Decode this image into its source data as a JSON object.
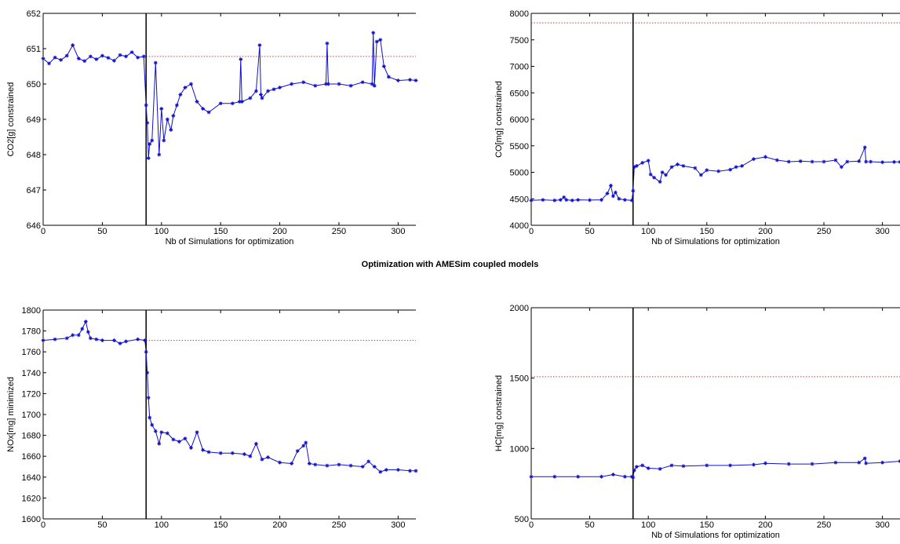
{
  "figure": {
    "suptitle": "Optimization with AMESim coupled models",
    "colors": {
      "series": "#1010cc",
      "limit": "#dd3333",
      "vline": "#000000",
      "axes": "#000000"
    }
  },
  "chart_data": [
    {
      "type": "line",
      "xlabel": "Nb of Simulations for optimization",
      "ylabel": "CO2[g] constrained",
      "xlim": [
        0,
        315
      ],
      "ylim": [
        646,
        652
      ],
      "xticks": [
        0,
        50,
        100,
        150,
        200,
        250,
        300
      ],
      "yticks": [
        646,
        647,
        648,
        649,
        650,
        651,
        652
      ],
      "vline_x": 87,
      "constraint_y": 650.78,
      "constraint_x_range": [
        87,
        315
      ],
      "series": [
        {
          "marker": "*",
          "x": [
            0,
            5,
            10,
            15,
            20,
            25,
            30,
            35,
            40,
            45,
            50,
            55,
            60,
            65,
            70,
            75,
            80,
            85,
            87,
            88,
            89,
            90,
            92,
            95,
            98,
            100,
            102,
            105,
            108,
            110,
            113,
            116,
            120,
            125,
            130,
            135,
            140,
            150,
            160,
            166,
            167,
            168,
            175,
            180,
            183,
            184,
            185,
            190,
            195,
            200,
            210,
            220,
            230,
            239,
            240,
            241,
            250,
            260,
            270,
            278,
            279,
            280,
            282,
            285,
            288,
            292,
            300,
            310,
            315
          ],
          "y": [
            650.72,
            650.58,
            650.75,
            650.68,
            650.8,
            651.1,
            650.72,
            650.65,
            650.78,
            650.7,
            650.8,
            650.74,
            650.66,
            650.82,
            650.78,
            650.9,
            650.75,
            650.78,
            649.4,
            648.9,
            647.9,
            648.3,
            648.4,
            650.6,
            648.0,
            649.3,
            648.4,
            649.0,
            648.7,
            649.1,
            649.4,
            649.7,
            649.9,
            650.0,
            649.5,
            649.3,
            649.2,
            649.45,
            649.45,
            649.5,
            650.7,
            649.5,
            649.6,
            649.8,
            651.1,
            649.7,
            649.6,
            649.8,
            649.85,
            649.9,
            650.0,
            650.05,
            649.95,
            650.0,
            651.15,
            650.0,
            650.0,
            649.95,
            650.05,
            650.0,
            651.45,
            649.95,
            651.2,
            651.25,
            650.5,
            650.2,
            650.1,
            650.12,
            650.1
          ]
        }
      ]
    },
    {
      "type": "line",
      "xlabel": "Nb of Simulations for optimization",
      "ylabel": "CO[mg] constrained",
      "xlim": [
        0,
        315
      ],
      "ylim": [
        4000,
        8000
      ],
      "xticks": [
        0,
        50,
        100,
        150,
        200,
        250,
        300
      ],
      "yticks": [
        4000,
        4500,
        5000,
        5500,
        6000,
        6500,
        7000,
        7500,
        8000
      ],
      "vline_x": 87,
      "constraint_y": 7820,
      "constraint_x_range": [
        0,
        315
      ],
      "series": [
        {
          "marker": "*",
          "x": [
            0,
            10,
            20,
            25,
            28,
            30,
            35,
            40,
            50,
            60,
            65,
            68,
            70,
            72,
            75,
            80,
            86,
            87,
            88,
            90,
            95,
            100,
            102,
            105,
            110,
            112,
            115,
            120,
            125,
            130,
            140,
            145,
            150,
            160,
            170,
            175,
            180,
            190,
            200,
            210,
            220,
            230,
            240,
            250,
            260,
            265,
            270,
            280,
            285,
            286,
            290,
            300,
            310,
            315
          ],
          "y": [
            4470,
            4480,
            4470,
            4480,
            4530,
            4480,
            4470,
            4480,
            4475,
            4480,
            4600,
            4750,
            4550,
            4620,
            4500,
            4480,
            4470,
            4650,
            5100,
            5120,
            5180,
            5220,
            4960,
            4900,
            4820,
            5000,
            4950,
            5100,
            5150,
            5120,
            5080,
            4950,
            5040,
            5020,
            5050,
            5100,
            5120,
            5250,
            5290,
            5230,
            5200,
            5210,
            5200,
            5200,
            5230,
            5100,
            5200,
            5210,
            5470,
            5200,
            5200,
            5190,
            5195,
            5195
          ]
        }
      ]
    },
    {
      "type": "line",
      "xlabel": "",
      "ylabel": "NOx[mg] minimized",
      "xlim": [
        0,
        315
      ],
      "ylim": [
        1600,
        1800
      ],
      "xticks": [
        0,
        50,
        100,
        150,
        200,
        250,
        300
      ],
      "yticks": [
        1600,
        1620,
        1640,
        1660,
        1680,
        1700,
        1720,
        1740,
        1760,
        1780,
        1800
      ],
      "vline_x": 87,
      "constraint_y": 1771,
      "constraint_x_range": [
        87,
        315
      ],
      "series": [
        {
          "marker": "*",
          "x": [
            0,
            10,
            20,
            25,
            30,
            33,
            36,
            38,
            40,
            45,
            50,
            60,
            65,
            70,
            80,
            86,
            87,
            88,
            89,
            90,
            92,
            95,
            98,
            100,
            105,
            110,
            115,
            120,
            125,
            130,
            135,
            140,
            150,
            160,
            170,
            175,
            180,
            185,
            190,
            200,
            210,
            215,
            220,
            222,
            225,
            230,
            240,
            250,
            260,
            270,
            275,
            280,
            285,
            290,
            300,
            310,
            315
          ],
          "y": [
            1771,
            1772,
            1773,
            1776,
            1776,
            1782,
            1789,
            1779,
            1773,
            1772,
            1771,
            1771,
            1768,
            1770,
            1772,
            1771,
            1760,
            1740,
            1716,
            1697,
            1690,
            1684,
            1672,
            1683,
            1682,
            1676,
            1674,
            1677,
            1668,
            1683,
            1666,
            1664,
            1663,
            1663,
            1662,
            1660,
            1672,
            1657,
            1659,
            1654,
            1653,
            1665,
            1670,
            1673,
            1653,
            1652,
            1651,
            1652,
            1651,
            1650,
            1655,
            1650,
            1645,
            1647,
            1647,
            1646,
            1646
          ]
        }
      ]
    },
    {
      "type": "line",
      "xlabel": "Nb of Simulations for optimization",
      "ylabel": "HC[mg] constrained",
      "xlim": [
        0,
        315
      ],
      "ylim": [
        500,
        2000
      ],
      "xticks": [
        0,
        50,
        100,
        150,
        200,
        250,
        300
      ],
      "yticks": [
        500,
        1000,
        1500,
        2000
      ],
      "vline_x": 87,
      "constraint_y": 1510,
      "constraint_x_range": [
        0,
        315
      ],
      "series": [
        {
          "marker": "*",
          "x": [
            0,
            20,
            40,
            60,
            70,
            80,
            86,
            87,
            88,
            90,
            95,
            100,
            110,
            120,
            130,
            150,
            170,
            190,
            200,
            220,
            240,
            260,
            280,
            285,
            286,
            300,
            315
          ],
          "y": [
            800,
            800,
            800,
            800,
            815,
            800,
            800,
            795,
            845,
            870,
            880,
            860,
            855,
            880,
            875,
            880,
            880,
            885,
            895,
            890,
            890,
            900,
            900,
            930,
            895,
            900,
            910
          ]
        }
      ]
    }
  ]
}
